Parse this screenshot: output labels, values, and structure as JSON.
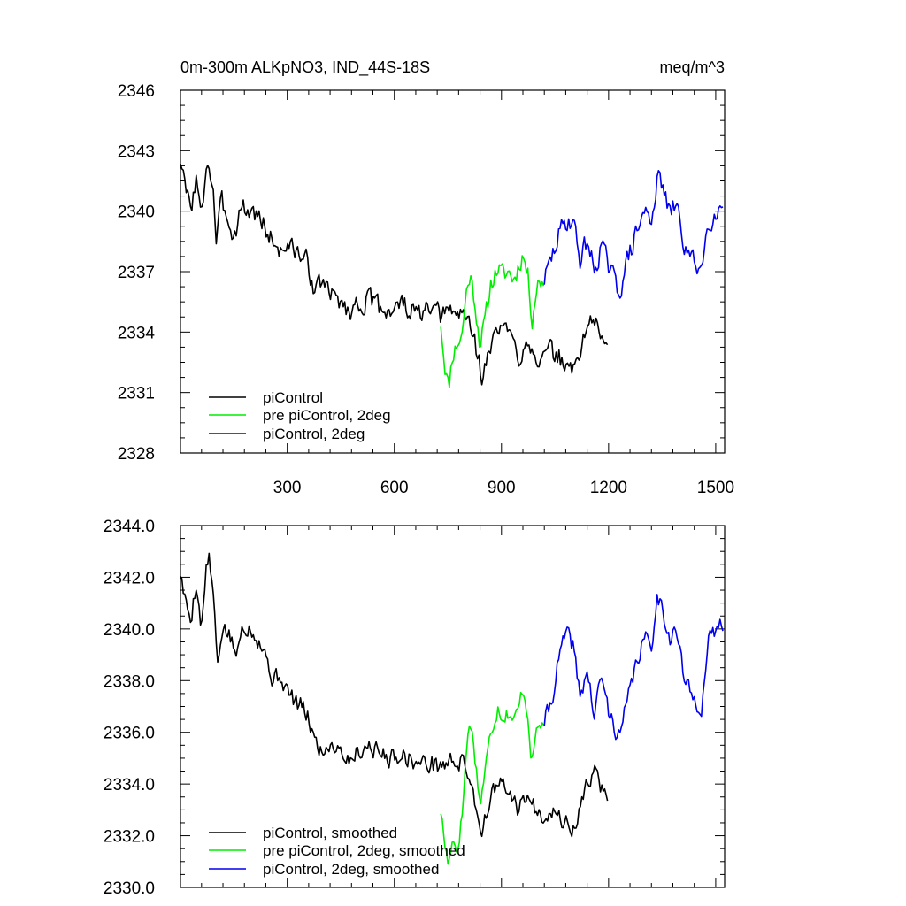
{
  "colors": {
    "piControl": "#000000",
    "pre": "#00ee00",
    "deg2": "#0000ee"
  },
  "chart_data": [
    {
      "type": "line",
      "title_left": "0m-300m ALKpNO3, IND_44S-18S",
      "title_right": "meq/m^3",
      "xlim": [
        1,
        1525
      ],
      "ylim": [
        2328,
        2346
      ],
      "xticks": [
        300,
        600,
        900,
        1200,
        1500
      ],
      "xtick_labels": [
        "300",
        "600",
        "900",
        "1200",
        "1500"
      ],
      "yticks": [
        2328,
        2331,
        2334,
        2337,
        2340,
        2343,
        2346
      ],
      "ytick_labels": [
        "2328",
        "2331",
        "2334",
        "2337",
        "2340",
        "2343",
        "2346"
      ],
      "legend_position": "bottom-left",
      "legend": [
        "piControl",
        "pre piControl, 2deg",
        "piControl, 2deg"
      ],
      "series": [
        {
          "name": "piControl",
          "color_key": "piControl",
          "x_start": 1,
          "x_end": 1200,
          "anchors": [
            [
              1,
              2342.6
            ],
            [
              15,
              2341.0
            ],
            [
              30,
              2340.2
            ],
            [
              45,
              2341.6
            ],
            [
              60,
              2339.5
            ],
            [
              75,
              2342.8
            ],
            [
              80,
              2342.2
            ],
            [
              95,
              2341.0
            ],
            [
              100,
              2338.2
            ],
            [
              115,
              2340.4
            ],
            [
              135,
              2339.8
            ],
            [
              150,
              2338.6
            ],
            [
              170,
              2340.3
            ],
            [
              190,
              2340.0
            ],
            [
              210,
              2339.9
            ],
            [
              225,
              2339.6
            ],
            [
              250,
              2338.8
            ],
            [
              280,
              2338.0
            ],
            [
              300,
              2338.4
            ],
            [
              320,
              2338.0
            ],
            [
              340,
              2337.8
            ],
            [
              355,
              2337.5
            ],
            [
              380,
              2336.0
            ],
            [
              400,
              2336.6
            ],
            [
              420,
              2335.8
            ],
            [
              450,
              2335.6
            ],
            [
              470,
              2335.0
            ],
            [
              500,
              2335.4
            ],
            [
              530,
              2335.6
            ],
            [
              560,
              2335.2
            ],
            [
              590,
              2335.1
            ],
            [
              620,
              2335.4
            ],
            [
              660,
              2334.9
            ],
            [
              700,
              2335.0
            ],
            [
              730,
              2334.8
            ],
            [
              760,
              2335.0
            ],
            [
              790,
              2334.9
            ],
            [
              810,
              2334.6
            ],
            [
              830,
              2333.2
            ],
            [
              845,
              2331.8
            ],
            [
              860,
              2332.6
            ],
            [
              880,
              2333.8
            ],
            [
              900,
              2334.4
            ],
            [
              920,
              2333.9
            ],
            [
              950,
              2332.7
            ],
            [
              970,
              2333.8
            ],
            [
              990,
              2333.1
            ],
            [
              1010,
              2332.5
            ],
            [
              1040,
              2333.0
            ],
            [
              1070,
              2332.6
            ],
            [
              1100,
              2332.0
            ],
            [
              1120,
              2333.1
            ],
            [
              1140,
              2334.3
            ],
            [
              1160,
              2334.8
            ],
            [
              1175,
              2333.6
            ],
            [
              1190,
              2333.6
            ],
            [
              1200,
              2334.0
            ]
          ],
          "noise": 0.75,
          "seed": 3
        },
        {
          "name": "pre piControl, 2deg",
          "color_key": "pre",
          "x_start": 730,
          "x_end": 1020,
          "anchors": [
            [
              730,
              2334.5
            ],
            [
              740,
              2332.6
            ],
            [
              752,
              2331.2
            ],
            [
              762,
              2332.8
            ],
            [
              775,
              2333.4
            ],
            [
              790,
              2333.9
            ],
            [
              800,
              2335.8
            ],
            [
              812,
              2336.9
            ],
            [
              825,
              2335.6
            ],
            [
              840,
              2333.4
            ],
            [
              855,
              2334.6
            ],
            [
              870,
              2336.4
            ],
            [
              890,
              2337.2
            ],
            [
              905,
              2336.8
            ],
            [
              920,
              2337.0
            ],
            [
              935,
              2336.6
            ],
            [
              950,
              2337.4
            ],
            [
              960,
              2337.9
            ],
            [
              975,
              2336.7
            ],
            [
              985,
              2334.6
            ],
            [
              1000,
              2336.4
            ],
            [
              1020,
              2336.6
            ]
          ],
          "noise": 0.7,
          "seed": 11
        },
        {
          "name": "piControl, 2deg",
          "color_key": "deg2",
          "x_start": 1020,
          "x_end": 1520,
          "anchors": [
            [
              1020,
              2336.6
            ],
            [
              1040,
              2337.6
            ],
            [
              1060,
              2338.8
            ],
            [
              1080,
              2339.5
            ],
            [
              1100,
              2339.6
            ],
            [
              1120,
              2337.6
            ],
            [
              1140,
              2338.6
            ],
            [
              1160,
              2337.0
            ],
            [
              1180,
              2338.4
            ],
            [
              1200,
              2337.2
            ],
            [
              1230,
              2336.0
            ],
            [
              1250,
              2337.4
            ],
            [
              1280,
              2339.0
            ],
            [
              1300,
              2340.0
            ],
            [
              1320,
              2339.6
            ],
            [
              1335,
              2341.5
            ],
            [
              1350,
              2341.4
            ],
            [
              1370,
              2339.8
            ],
            [
              1390,
              2340.4
            ],
            [
              1410,
              2338.4
            ],
            [
              1430,
              2337.6
            ],
            [
              1460,
              2337.2
            ],
            [
              1480,
              2339.5
            ],
            [
              1500,
              2340.0
            ],
            [
              1520,
              2340.3
            ]
          ],
          "noise": 0.75,
          "seed": 29
        }
      ]
    },
    {
      "type": "line",
      "xlim": [
        1,
        1525
      ],
      "ylim": [
        2330.0,
        2344.0
      ],
      "xticks": [
        300,
        600,
        900,
        1200,
        1500
      ],
      "yticks": [
        2330.0,
        2332.0,
        2334.0,
        2336.0,
        2338.0,
        2340.0,
        2342.0,
        2344.0
      ],
      "ytick_labels": [
        "2330.0",
        "2332.0",
        "2334.0",
        "2336.0",
        "2338.0",
        "2340.0",
        "2342.0",
        "2344.0"
      ],
      "legend_position": "bottom-left",
      "legend": [
        "piControl, smoothed",
        "pre piControl, 2deg, smoothed",
        "piControl, 2deg, smoothed"
      ],
      "series": [
        {
          "name": "piControl, smoothed",
          "color_key": "piControl",
          "x_start": 1,
          "x_end": 1200,
          "anchors": [
            [
              1,
              2342.2
            ],
            [
              15,
              2341.0
            ],
            [
              30,
              2340.4
            ],
            [
              45,
              2341.8
            ],
            [
              60,
              2340.0
            ],
            [
              75,
              2342.6
            ],
            [
              80,
              2342.8
            ],
            [
              95,
              2341.0
            ],
            [
              105,
              2338.4
            ],
            [
              120,
              2340.2
            ],
            [
              140,
              2339.6
            ],
            [
              160,
              2339.0
            ],
            [
              175,
              2340.2
            ],
            [
              200,
              2340.0
            ],
            [
              220,
              2339.6
            ],
            [
              240,
              2339.0
            ],
            [
              260,
              2338.0
            ],
            [
              280,
              2338.2
            ],
            [
              300,
              2337.6
            ],
            [
              320,
              2337.2
            ],
            [
              340,
              2337.0
            ],
            [
              360,
              2336.5
            ],
            [
              380,
              2335.6
            ],
            [
              400,
              2335.2
            ],
            [
              420,
              2335.6
            ],
            [
              450,
              2335.4
            ],
            [
              470,
              2334.9
            ],
            [
              500,
              2335.3
            ],
            [
              530,
              2335.5
            ],
            [
              560,
              2335.2
            ],
            [
              590,
              2335.0
            ],
            [
              620,
              2335.2
            ],
            [
              660,
              2334.8
            ],
            [
              700,
              2334.8
            ],
            [
              730,
              2334.7
            ],
            [
              760,
              2334.9
            ],
            [
              790,
              2334.8
            ],
            [
              810,
              2334.4
            ],
            [
              830,
              2333.0
            ],
            [
              845,
              2332.2
            ],
            [
              860,
              2333.0
            ],
            [
              880,
              2333.8
            ],
            [
              900,
              2334.0
            ],
            [
              920,
              2333.6
            ],
            [
              950,
              2333.0
            ],
            [
              970,
              2333.6
            ],
            [
              990,
              2333.1
            ],
            [
              1010,
              2332.8
            ],
            [
              1040,
              2333.0
            ],
            [
              1070,
              2332.6
            ],
            [
              1100,
              2332.2
            ],
            [
              1120,
              2333.0
            ],
            [
              1140,
              2334.0
            ],
            [
              1160,
              2334.6
            ],
            [
              1175,
              2334.0
            ],
            [
              1190,
              2333.5
            ],
            [
              1200,
              2333.6
            ]
          ],
          "noise": 0.5,
          "seed": 5
        },
        {
          "name": "pre piControl, 2deg, smoothed",
          "color_key": "pre",
          "x_start": 730,
          "x_end": 1020,
          "anchors": [
            [
              730,
              2333.0
            ],
            [
              740,
              2331.8
            ],
            [
              752,
              2330.8
            ],
            [
              762,
              2332.0
            ],
            [
              775,
              2331.4
            ],
            [
              790,
              2332.8
            ],
            [
              800,
              2335.0
            ],
            [
              812,
              2336.6
            ],
            [
              825,
              2335.2
            ],
            [
              840,
              2333.2
            ],
            [
              855,
              2334.6
            ],
            [
              870,
              2336.0
            ],
            [
              890,
              2337.0
            ],
            [
              905,
              2336.6
            ],
            [
              920,
              2336.8
            ],
            [
              935,
              2336.4
            ],
            [
              950,
              2337.0
            ],
            [
              960,
              2337.8
            ],
            [
              975,
              2336.6
            ],
            [
              985,
              2334.8
            ],
            [
              1000,
              2336.2
            ],
            [
              1020,
              2336.4
            ]
          ],
          "noise": 0.45,
          "seed": 17
        },
        {
          "name": "piControl, 2deg, smoothed",
          "color_key": "deg2",
          "x_start": 1020,
          "x_end": 1520,
          "anchors": [
            [
              1020,
              2336.4
            ],
            [
              1040,
              2337.2
            ],
            [
              1060,
              2338.8
            ],
            [
              1080,
              2339.8
            ],
            [
              1100,
              2339.4
            ],
            [
              1120,
              2337.4
            ],
            [
              1140,
              2338.4
            ],
            [
              1160,
              2336.6
            ],
            [
              1180,
              2338.2
            ],
            [
              1200,
              2336.8
            ],
            [
              1230,
              2335.8
            ],
            [
              1250,
              2337.0
            ],
            [
              1280,
              2338.8
            ],
            [
              1300,
              2339.6
            ],
            [
              1320,
              2339.4
            ],
            [
              1335,
              2341.2
            ],
            [
              1350,
              2341.0
            ],
            [
              1370,
              2339.6
            ],
            [
              1390,
              2340.0
            ],
            [
              1410,
              2338.2
            ],
            [
              1430,
              2337.4
            ],
            [
              1460,
              2337.0
            ],
            [
              1480,
              2339.4
            ],
            [
              1500,
              2340.0
            ],
            [
              1520,
              2340.2
            ]
          ],
          "noise": 0.5,
          "seed": 41
        }
      ]
    }
  ]
}
